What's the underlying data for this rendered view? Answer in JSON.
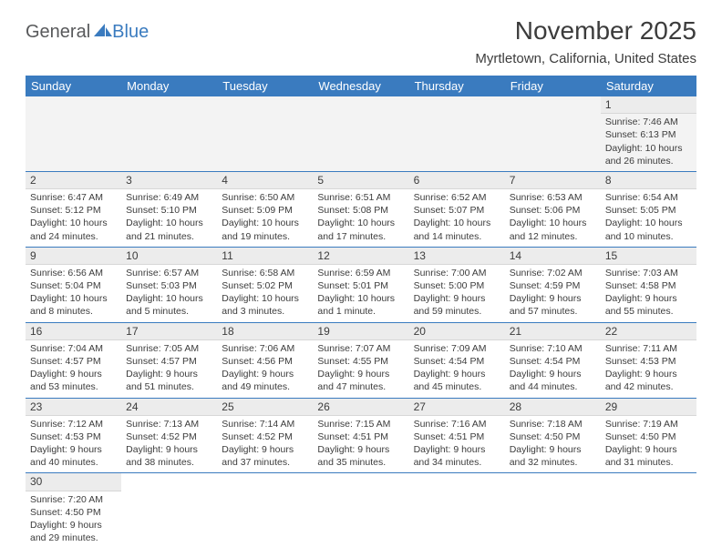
{
  "logo": {
    "part1": "General",
    "part2": "Blue"
  },
  "title": "November 2025",
  "location": "Myrtletown, California, United States",
  "header_bg": "#3a7bbf",
  "header_fg": "#ffffff",
  "text_color": "#3c3c3c",
  "daynum_bg": "#ececec",
  "row_border": "#3a7bbf",
  "columns": [
    "Sunday",
    "Monday",
    "Tuesday",
    "Wednesday",
    "Thursday",
    "Friday",
    "Saturday"
  ],
  "weeks": [
    [
      null,
      null,
      null,
      null,
      null,
      null,
      {
        "n": "1",
        "sr": "Sunrise: 7:46 AM",
        "ss": "Sunset: 6:13 PM",
        "d1": "Daylight: 10 hours",
        "d2": "and 26 minutes."
      }
    ],
    [
      {
        "n": "2",
        "sr": "Sunrise: 6:47 AM",
        "ss": "Sunset: 5:12 PM",
        "d1": "Daylight: 10 hours",
        "d2": "and 24 minutes."
      },
      {
        "n": "3",
        "sr": "Sunrise: 6:49 AM",
        "ss": "Sunset: 5:10 PM",
        "d1": "Daylight: 10 hours",
        "d2": "and 21 minutes."
      },
      {
        "n": "4",
        "sr": "Sunrise: 6:50 AM",
        "ss": "Sunset: 5:09 PM",
        "d1": "Daylight: 10 hours",
        "d2": "and 19 minutes."
      },
      {
        "n": "5",
        "sr": "Sunrise: 6:51 AM",
        "ss": "Sunset: 5:08 PM",
        "d1": "Daylight: 10 hours",
        "d2": "and 17 minutes."
      },
      {
        "n": "6",
        "sr": "Sunrise: 6:52 AM",
        "ss": "Sunset: 5:07 PM",
        "d1": "Daylight: 10 hours",
        "d2": "and 14 minutes."
      },
      {
        "n": "7",
        "sr": "Sunrise: 6:53 AM",
        "ss": "Sunset: 5:06 PM",
        "d1": "Daylight: 10 hours",
        "d2": "and 12 minutes."
      },
      {
        "n": "8",
        "sr": "Sunrise: 6:54 AM",
        "ss": "Sunset: 5:05 PM",
        "d1": "Daylight: 10 hours",
        "d2": "and 10 minutes."
      }
    ],
    [
      {
        "n": "9",
        "sr": "Sunrise: 6:56 AM",
        "ss": "Sunset: 5:04 PM",
        "d1": "Daylight: 10 hours",
        "d2": "and 8 minutes."
      },
      {
        "n": "10",
        "sr": "Sunrise: 6:57 AM",
        "ss": "Sunset: 5:03 PM",
        "d1": "Daylight: 10 hours",
        "d2": "and 5 minutes."
      },
      {
        "n": "11",
        "sr": "Sunrise: 6:58 AM",
        "ss": "Sunset: 5:02 PM",
        "d1": "Daylight: 10 hours",
        "d2": "and 3 minutes."
      },
      {
        "n": "12",
        "sr": "Sunrise: 6:59 AM",
        "ss": "Sunset: 5:01 PM",
        "d1": "Daylight: 10 hours",
        "d2": "and 1 minute."
      },
      {
        "n": "13",
        "sr": "Sunrise: 7:00 AM",
        "ss": "Sunset: 5:00 PM",
        "d1": "Daylight: 9 hours",
        "d2": "and 59 minutes."
      },
      {
        "n": "14",
        "sr": "Sunrise: 7:02 AM",
        "ss": "Sunset: 4:59 PM",
        "d1": "Daylight: 9 hours",
        "d2": "and 57 minutes."
      },
      {
        "n": "15",
        "sr": "Sunrise: 7:03 AM",
        "ss": "Sunset: 4:58 PM",
        "d1": "Daylight: 9 hours",
        "d2": "and 55 minutes."
      }
    ],
    [
      {
        "n": "16",
        "sr": "Sunrise: 7:04 AM",
        "ss": "Sunset: 4:57 PM",
        "d1": "Daylight: 9 hours",
        "d2": "and 53 minutes."
      },
      {
        "n": "17",
        "sr": "Sunrise: 7:05 AM",
        "ss": "Sunset: 4:57 PM",
        "d1": "Daylight: 9 hours",
        "d2": "and 51 minutes."
      },
      {
        "n": "18",
        "sr": "Sunrise: 7:06 AM",
        "ss": "Sunset: 4:56 PM",
        "d1": "Daylight: 9 hours",
        "d2": "and 49 minutes."
      },
      {
        "n": "19",
        "sr": "Sunrise: 7:07 AM",
        "ss": "Sunset: 4:55 PM",
        "d1": "Daylight: 9 hours",
        "d2": "and 47 minutes."
      },
      {
        "n": "20",
        "sr": "Sunrise: 7:09 AM",
        "ss": "Sunset: 4:54 PM",
        "d1": "Daylight: 9 hours",
        "d2": "and 45 minutes."
      },
      {
        "n": "21",
        "sr": "Sunrise: 7:10 AM",
        "ss": "Sunset: 4:54 PM",
        "d1": "Daylight: 9 hours",
        "d2": "and 44 minutes."
      },
      {
        "n": "22",
        "sr": "Sunrise: 7:11 AM",
        "ss": "Sunset: 4:53 PM",
        "d1": "Daylight: 9 hours",
        "d2": "and 42 minutes."
      }
    ],
    [
      {
        "n": "23",
        "sr": "Sunrise: 7:12 AM",
        "ss": "Sunset: 4:53 PM",
        "d1": "Daylight: 9 hours",
        "d2": "and 40 minutes."
      },
      {
        "n": "24",
        "sr": "Sunrise: 7:13 AM",
        "ss": "Sunset: 4:52 PM",
        "d1": "Daylight: 9 hours",
        "d2": "and 38 minutes."
      },
      {
        "n": "25",
        "sr": "Sunrise: 7:14 AM",
        "ss": "Sunset: 4:52 PM",
        "d1": "Daylight: 9 hours",
        "d2": "and 37 minutes."
      },
      {
        "n": "26",
        "sr": "Sunrise: 7:15 AM",
        "ss": "Sunset: 4:51 PM",
        "d1": "Daylight: 9 hours",
        "d2": "and 35 minutes."
      },
      {
        "n": "27",
        "sr": "Sunrise: 7:16 AM",
        "ss": "Sunset: 4:51 PM",
        "d1": "Daylight: 9 hours",
        "d2": "and 34 minutes."
      },
      {
        "n": "28",
        "sr": "Sunrise: 7:18 AM",
        "ss": "Sunset: 4:50 PM",
        "d1": "Daylight: 9 hours",
        "d2": "and 32 minutes."
      },
      {
        "n": "29",
        "sr": "Sunrise: 7:19 AM",
        "ss": "Sunset: 4:50 PM",
        "d1": "Daylight: 9 hours",
        "d2": "and 31 minutes."
      }
    ],
    [
      {
        "n": "30",
        "sr": "Sunrise: 7:20 AM",
        "ss": "Sunset: 4:50 PM",
        "d1": "Daylight: 9 hours",
        "d2": "and 29 minutes."
      },
      null,
      null,
      null,
      null,
      null,
      null
    ]
  ]
}
